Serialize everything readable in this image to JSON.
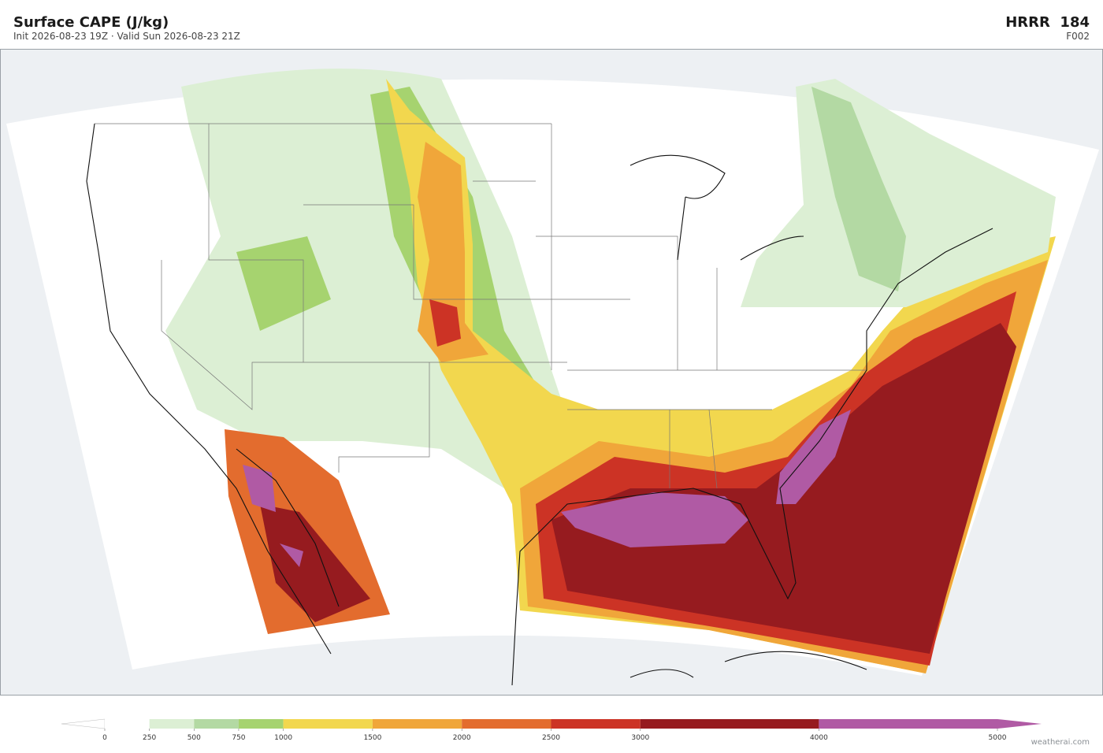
{
  "header": {
    "title": "Surface CAPE  (J/kg)",
    "subtitle": "Init 2026-08-23 19Z  ·  Valid Sun 2026-08-23 21Z",
    "model": "HRRR  184",
    "forecast_hour": "F002"
  },
  "colorbar": {
    "xlim": [
      0,
      5000
    ],
    "ticks": [
      0,
      250,
      500,
      750,
      1000,
      1500,
      2000,
      2500,
      3000,
      4000,
      5000
    ],
    "colors": [
      "#ffffff",
      "#dcefd4",
      "#b3d9a3",
      "#a6d36f",
      "#f2d74e",
      "#f0a63a",
      "#e36c2e",
      "#cc3325",
      "#961b1f",
      "#b05aa4"
    ]
  },
  "footer": {
    "credit": "weatherai.com"
  }
}
